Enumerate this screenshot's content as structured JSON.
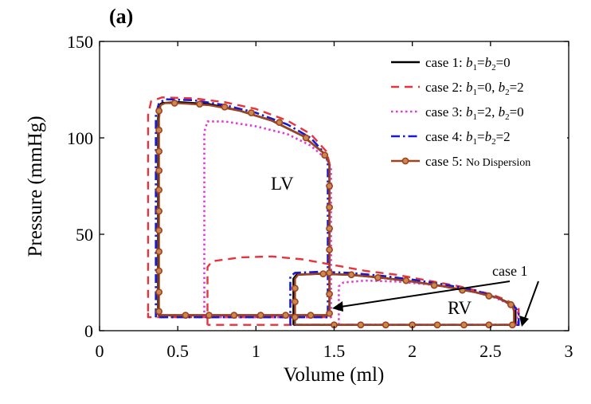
{
  "panel_label": "(a)",
  "chart_data": {
    "type": "line",
    "title": "",
    "xlabel": "Volume (ml)",
    "ylabel": "Pressure (mmHg)",
    "xlim": [
      0,
      3
    ],
    "ylim": [
      0,
      150
    ],
    "xticks": [
      "0",
      "0.5",
      "1",
      "1.5",
      "2",
      "2.5",
      "3"
    ],
    "yticks": [
      "0",
      "50",
      "100",
      "150"
    ],
    "grid": false,
    "legend_position": "top-right",
    "region_labels": [
      "LV",
      "RV"
    ],
    "annotation": "case 1",
    "series": [
      {
        "name": "case 1",
        "legend": {
          "pre": "case 1: ",
          "b1": "b",
          "sub1": "1",
          "mid": "=",
          "b2": "b",
          "sub2": "2",
          "post": "=0",
          "tail": ""
        },
        "color": "#000000",
        "dash": "",
        "width": 2.6,
        "markers": false,
        "loops": [
          [
            [
              0.375,
              8
            ],
            [
              0.375,
              110
            ],
            [
              0.38,
              117
            ],
            [
              0.4,
              118
            ],
            [
              0.5,
              118.5
            ],
            [
              0.7,
              117.5
            ],
            [
              0.9,
              114
            ],
            [
              1.1,
              109
            ],
            [
              1.3,
              101
            ],
            [
              1.45,
              91
            ],
            [
              1.47,
              86
            ],
            [
              1.47,
              8
            ],
            [
              0.375,
              8
            ]
          ],
          [
            [
              1.24,
              3
            ],
            [
              1.24,
              27
            ],
            [
              1.26,
              29
            ],
            [
              1.4,
              29.5
            ],
            [
              1.6,
              29
            ],
            [
              1.8,
              27.5
            ],
            [
              2.0,
              25.5
            ],
            [
              2.2,
              23
            ],
            [
              2.4,
              20
            ],
            [
              2.55,
              17
            ],
            [
              2.65,
              13
            ],
            [
              2.66,
              10
            ],
            [
              2.66,
              3
            ],
            [
              1.24,
              3
            ]
          ]
        ]
      },
      {
        "name": "case 2",
        "legend": {
          "pre": "case 2: ",
          "b1": "b",
          "sub1": "1",
          "mid": "=0, ",
          "b2": "b",
          "sub2": "2",
          "post": "=2",
          "tail": ""
        },
        "color": "#e8333a",
        "dash": "10,7",
        "width": 2.4,
        "markers": false,
        "loops": [
          [
            [
              0.31,
              10
            ],
            [
              0.31,
              112
            ],
            [
              0.33,
              119
            ],
            [
              0.4,
              121
            ],
            [
              0.6,
              120.5
            ],
            [
              0.8,
              118.5
            ],
            [
              1.0,
              115
            ],
            [
              1.2,
              109
            ],
            [
              1.35,
              102
            ],
            [
              1.45,
              93
            ],
            [
              1.47,
              87
            ],
            [
              1.47,
              7
            ],
            [
              0.31,
              7
            ],
            [
              0.31,
              10
            ]
          ],
          [
            [
              0.69,
              3
            ],
            [
              0.69,
              33
            ],
            [
              0.72,
              36
            ],
            [
              0.9,
              38
            ],
            [
              1.1,
              38.5
            ],
            [
              1.3,
              37
            ],
            [
              1.5,
              34
            ],
            [
              1.7,
              31
            ],
            [
              1.9,
              29
            ],
            [
              2.1,
              26
            ],
            [
              2.3,
              23
            ],
            [
              2.5,
              19
            ],
            [
              2.6,
              16
            ],
            [
              2.68,
              12
            ],
            [
              2.68,
              3
            ],
            [
              0.69,
              3
            ]
          ]
        ]
      },
      {
        "name": "case 3",
        "legend": {
          "pre": "case 3: ",
          "b1": "b",
          "sub1": "1",
          "mid": "=2, ",
          "b2": "b",
          "sub2": "2",
          "post": "=0",
          "tail": ""
        },
        "color": "#e23ad6",
        "dash": "2.5,3.5",
        "width": 2.6,
        "markers": false,
        "loops": [
          [
            [
              0.67,
              7
            ],
            [
              0.67,
              103
            ],
            [
              0.69,
              108.5
            ],
            [
              0.8,
              108.5
            ],
            [
              1.0,
              106
            ],
            [
              1.2,
              102
            ],
            [
              1.35,
              96
            ],
            [
              1.45,
              89
            ],
            [
              1.48,
              85
            ],
            [
              1.48,
              7
            ],
            [
              0.67,
              7
            ]
          ],
          [
            [
              1.53,
              3
            ],
            [
              1.53,
              23
            ],
            [
              1.56,
              25
            ],
            [
              1.7,
              26
            ],
            [
              1.9,
              25.5
            ],
            [
              2.1,
              24
            ],
            [
              2.3,
              22
            ],
            [
              2.5,
              18
            ],
            [
              2.62,
              14
            ],
            [
              2.67,
              10
            ],
            [
              2.67,
              3
            ],
            [
              1.53,
              3
            ]
          ]
        ]
      },
      {
        "name": "case 4",
        "legend": {
          "pre": "case 4: ",
          "b1": "b",
          "sub1": "1",
          "mid": "=",
          "b2": "b",
          "sub2": "2",
          "post": "=2",
          "tail": ""
        },
        "color": "#1a1acc",
        "dash": "11,4,2.5,4",
        "width": 2.6,
        "markers": false,
        "loops": [
          [
            [
              0.36,
              7
            ],
            [
              0.36,
              112
            ],
            [
              0.38,
              118
            ],
            [
              0.42,
              120
            ],
            [
              0.6,
              119.5
            ],
            [
              0.8,
              117
            ],
            [
              1.0,
              113
            ],
            [
              1.2,
              107
            ],
            [
              1.35,
              100
            ],
            [
              1.45,
              91
            ],
            [
              1.46,
              86
            ],
            [
              1.46,
              7
            ],
            [
              0.36,
              7
            ]
          ],
          [
            [
              1.22,
              3
            ],
            [
              1.22,
              28
            ],
            [
              1.25,
              30
            ],
            [
              1.4,
              30.5
            ],
            [
              1.6,
              30
            ],
            [
              1.8,
              28.5
            ],
            [
              2.0,
              26.5
            ],
            [
              2.2,
              24
            ],
            [
              2.4,
              21
            ],
            [
              2.55,
              17
            ],
            [
              2.66,
              12
            ],
            [
              2.68,
              9
            ],
            [
              2.68,
              3
            ],
            [
              1.22,
              3
            ]
          ]
        ]
      },
      {
        "name": "case 5",
        "legend": {
          "pre": "case 5: ",
          "b1": "",
          "sub1": "",
          "mid": "",
          "b2": "",
          "sub2": "",
          "post": "",
          "tail": "No Dispersion"
        },
        "color": "#a0421e",
        "dash": "",
        "width": 2.4,
        "markers": true,
        "loops": [
          [
            [
              0.38,
              8
            ],
            [
              0.38,
              110
            ],
            [
              0.39,
              117
            ],
            [
              0.42,
              118
            ],
            [
              0.5,
              118
            ],
            [
              0.7,
              117
            ],
            [
              0.9,
              114
            ],
            [
              1.1,
              109
            ],
            [
              1.3,
              101
            ],
            [
              1.45,
              91
            ],
            [
              1.47,
              86
            ],
            [
              1.47,
              8
            ],
            [
              0.38,
              8
            ]
          ],
          [
            [
              1.25,
              3
            ],
            [
              1.25,
              27
            ],
            [
              1.27,
              29
            ],
            [
              1.4,
              29.5
            ],
            [
              1.6,
              29
            ],
            [
              1.8,
              27.5
            ],
            [
              2.0,
              25.5
            ],
            [
              2.2,
              23
            ],
            [
              2.4,
              20
            ],
            [
              2.55,
              17
            ],
            [
              2.64,
              13
            ],
            [
              2.65,
              10
            ],
            [
              2.65,
              3
            ],
            [
              1.25,
              3
            ]
          ]
        ],
        "marker_points": [
          [
            0.38,
            10
          ],
          [
            0.38,
            20
          ],
          [
            0.38,
            31
          ],
          [
            0.38,
            41
          ],
          [
            0.38,
            52
          ],
          [
            0.38,
            62
          ],
          [
            0.38,
            73
          ],
          [
            0.38,
            83
          ],
          [
            0.38,
            93
          ],
          [
            0.38,
            104
          ],
          [
            0.38,
            114
          ],
          [
            0.48,
            118
          ],
          [
            0.64,
            117.5
          ],
          [
            0.8,
            116
          ],
          [
            0.97,
            113
          ],
          [
            1.15,
            108
          ],
          [
            1.32,
            100
          ],
          [
            1.44,
            91
          ],
          [
            1.47,
            75
          ],
          [
            1.47,
            64
          ],
          [
            1.47,
            53
          ],
          [
            1.47,
            42
          ],
          [
            1.47,
            30
          ],
          [
            1.47,
            19
          ],
          [
            1.47,
            9
          ],
          [
            1.35,
            8
          ],
          [
            1.19,
            8
          ],
          [
            1.03,
            8
          ],
          [
            0.86,
            8
          ],
          [
            0.7,
            8
          ],
          [
            0.55,
            8
          ],
          [
            1.25,
            7
          ],
          [
            1.25,
            15
          ],
          [
            1.25,
            22
          ],
          [
            1.43,
            29.5
          ],
          [
            1.61,
            29
          ],
          [
            1.78,
            27.5
          ],
          [
            1.96,
            26
          ],
          [
            2.14,
            23.5
          ],
          [
            2.32,
            21
          ],
          [
            2.49,
            18
          ],
          [
            2.63,
            13.5
          ],
          [
            1.5,
            3
          ],
          [
            1.67,
            3
          ],
          [
            1.83,
            3
          ],
          [
            2.0,
            3
          ],
          [
            2.16,
            3
          ],
          [
            2.33,
            3
          ],
          [
            2.49,
            3
          ],
          [
            2.64,
            3
          ]
        ]
      }
    ]
  }
}
